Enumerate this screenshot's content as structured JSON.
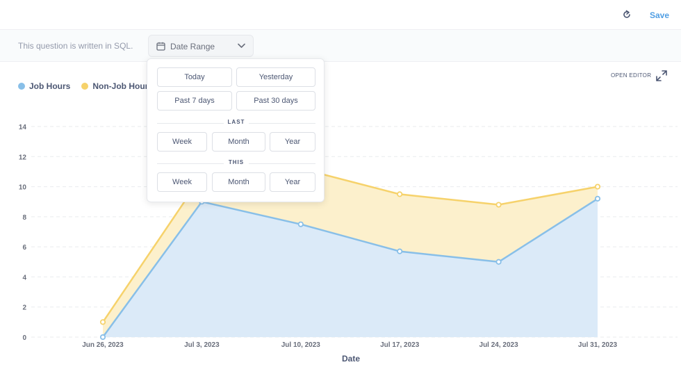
{
  "header": {
    "save_label": "Save",
    "refresh_icon": "refresh-icon"
  },
  "sql_bar": {
    "note": "This question is written in SQL.",
    "date_filter_label": "Date Range",
    "open_editor_label": "OPEN EDITOR"
  },
  "date_popover": {
    "quick": [
      "Today",
      "Yesterday",
      "Past 7 days",
      "Past 30 days"
    ],
    "last_header": "LAST",
    "last_options": [
      "Week",
      "Month",
      "Year"
    ],
    "this_header": "THIS",
    "this_options": [
      "Week",
      "Month",
      "Year"
    ]
  },
  "colors": {
    "job": "#88bfe8",
    "job_fill": "#dbeaf8",
    "nonjob": "#f6d26b",
    "nonjob_fill": "#fcf0cc",
    "accent": "#509ee3"
  },
  "chart_data": {
    "type": "area",
    "stacked": false,
    "x": [
      "Jun 26, 2023",
      "Jul 3, 2023",
      "Jul 10, 2023",
      "Jul 17, 2023",
      "Jul 24, 2023",
      "Jul 31, 2023"
    ],
    "series": [
      {
        "name": "Job Hours",
        "values": [
          0,
          9.0,
          7.5,
          5.7,
          5.0,
          9.2
        ]
      },
      {
        "name": "Non-Job Hours",
        "values": [
          1.0,
          10.7,
          11.2,
          9.5,
          8.8,
          10.0
        ]
      }
    ],
    "xlabel": "Date",
    "ylabel": "",
    "yticks": [
      0,
      2,
      4,
      6,
      8,
      10,
      12,
      14
    ],
    "ylim": [
      0,
      14
    ],
    "grid": true,
    "legend": "top-left"
  }
}
